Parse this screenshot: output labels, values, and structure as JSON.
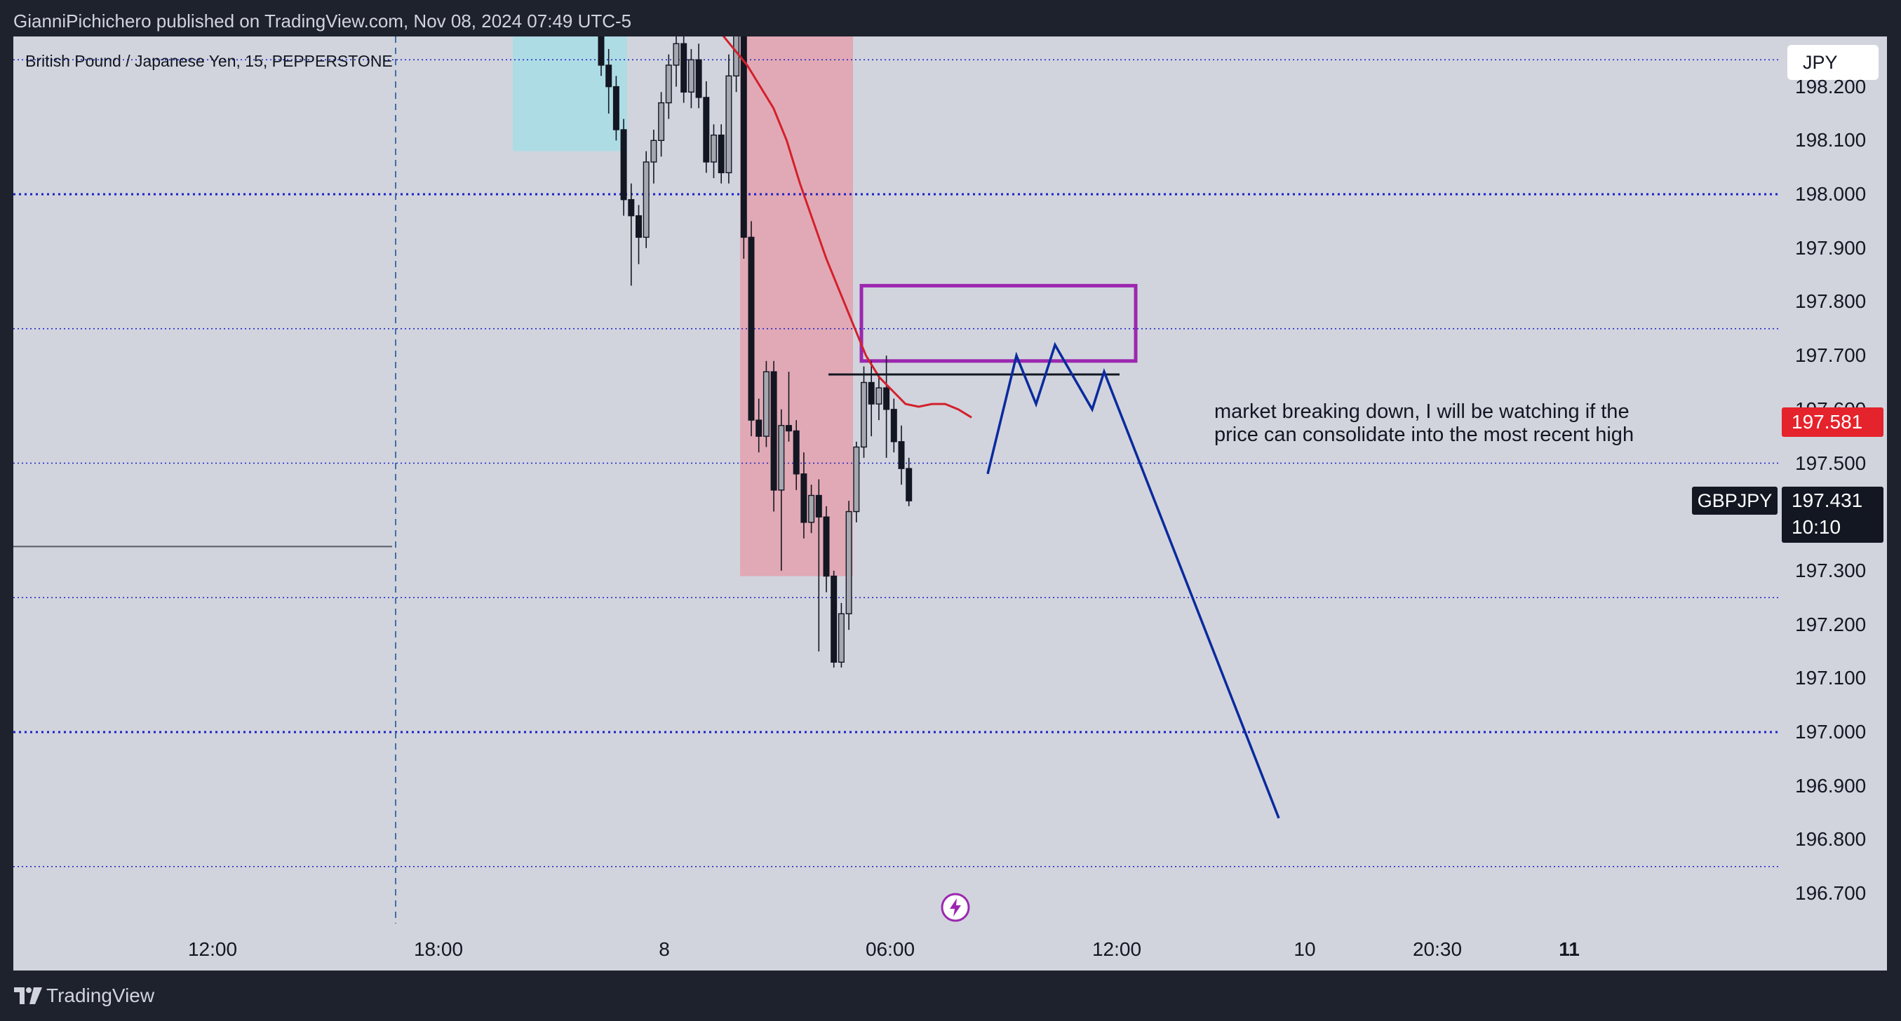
{
  "attribution": "GianniPichichero published on TradingView.com, Nov 08, 2024 07:49 UTC-5",
  "chart": {
    "symbol_title": "British Pound / Japanese Yen, 15, PEPPERSTONE",
    "currency_button": "JPY",
    "symbol": "GBPJPY",
    "price_line_red": "197.581",
    "price_last": "197.431",
    "countdown": "10:10",
    "annotation": "market breaking down, I will be watching if the price can consolidate into the most recent high",
    "colors": {
      "background": "#d1d4dc",
      "frame": "#1e222d",
      "ma_line": "#d3202c",
      "projection": "#0a2a9e",
      "supply_zone_fill": "#e4a1ae",
      "demand_zone_fill": "#a8dde6",
      "target_box": "#9c27b0",
      "horizontal_levels": "#1b1fc8",
      "price_red": "#e5232c"
    }
  },
  "footer": {
    "brand": "TradingView"
  },
  "chart_data": {
    "type": "candlestick",
    "y_axis": {
      "min": 196.65,
      "max": 198.25,
      "ticks": [
        "198.200",
        "198.100",
        "198.000",
        "197.900",
        "197.800",
        "197.700",
        "197.600",
        "197.500",
        "197.300",
        "197.200",
        "197.100",
        "197.000",
        "196.900",
        "196.800",
        "196.700"
      ]
    },
    "x_axis": {
      "ticks": [
        {
          "label": "12:00",
          "bold": false
        },
        {
          "label": "18:00",
          "bold": false
        },
        {
          "label": "8",
          "bold": false
        },
        {
          "label": "06:00",
          "bold": false
        },
        {
          "label": "12:00",
          "bold": false
        },
        {
          "label": "10",
          "bold": false
        },
        {
          "label": "20:30",
          "bold": false
        },
        {
          "label": "11",
          "bold": true
        }
      ]
    },
    "levels": [
      {
        "price": 198.25,
        "style": "dotted-thin"
      },
      {
        "price": 198.0,
        "style": "dotted-thick"
      },
      {
        "price": 197.75,
        "style": "dotted-thin"
      },
      {
        "price": 197.5,
        "style": "dotted-thin"
      },
      {
        "price": 197.25,
        "style": "dotted-thin"
      },
      {
        "price": 197.0,
        "style": "dotted-thick"
      },
      {
        "price": 196.75,
        "style": "dotted-thin"
      }
    ],
    "old_level": 197.345,
    "recent_high_line": 197.665,
    "zones": [
      {
        "name": "demand-zone",
        "from": 198.45,
        "to": 198.08
      },
      {
        "name": "supply-zone",
        "from": 198.45,
        "to": 197.29
      },
      {
        "name": "target-box",
        "from": 197.83,
        "to": 197.69
      }
    ],
    "candles": [
      {
        "o": 198.33,
        "h": 198.36,
        "l": 198.22,
        "c": 198.24
      },
      {
        "o": 198.24,
        "h": 198.27,
        "l": 198.15,
        "c": 198.2
      },
      {
        "o": 198.2,
        "h": 198.22,
        "l": 198.1,
        "c": 198.12
      },
      {
        "o": 198.12,
        "h": 198.14,
        "l": 197.96,
        "c": 197.99
      },
      {
        "o": 197.99,
        "h": 198.02,
        "l": 197.83,
        "c": 197.96
      },
      {
        "o": 197.96,
        "h": 197.98,
        "l": 197.87,
        "c": 197.92
      },
      {
        "o": 197.92,
        "h": 198.08,
        "l": 197.9,
        "c": 198.06
      },
      {
        "o": 198.06,
        "h": 198.12,
        "l": 198.02,
        "c": 198.1
      },
      {
        "o": 198.1,
        "h": 198.19,
        "l": 198.07,
        "c": 198.17
      },
      {
        "o": 198.17,
        "h": 198.26,
        "l": 198.14,
        "c": 198.24
      },
      {
        "o": 198.24,
        "h": 198.32,
        "l": 198.2,
        "c": 198.28
      },
      {
        "o": 198.28,
        "h": 198.3,
        "l": 198.17,
        "c": 198.19
      },
      {
        "o": 198.19,
        "h": 198.27,
        "l": 198.16,
        "c": 198.25
      },
      {
        "o": 198.25,
        "h": 198.28,
        "l": 198.16,
        "c": 198.18
      },
      {
        "o": 198.18,
        "h": 198.21,
        "l": 198.04,
        "c": 198.06
      },
      {
        "o": 198.06,
        "h": 198.13,
        "l": 198.03,
        "c": 198.11
      },
      {
        "o": 198.11,
        "h": 198.13,
        "l": 198.02,
        "c": 198.04
      },
      {
        "o": 198.04,
        "h": 198.26,
        "l": 198.02,
        "c": 198.22
      },
      {
        "o": 198.22,
        "h": 198.32,
        "l": 198.19,
        "c": 198.3
      },
      {
        "o": 198.3,
        "h": 198.32,
        "l": 197.88,
        "c": 197.92
      },
      {
        "o": 197.92,
        "h": 197.95,
        "l": 197.55,
        "c": 197.58
      },
      {
        "o": 197.58,
        "h": 197.62,
        "l": 197.52,
        "c": 197.55
      },
      {
        "o": 197.55,
        "h": 197.69,
        "l": 197.53,
        "c": 197.67
      },
      {
        "o": 197.67,
        "h": 197.69,
        "l": 197.41,
        "c": 197.45
      },
      {
        "o": 197.45,
        "h": 197.6,
        "l": 197.3,
        "c": 197.57
      },
      {
        "o": 197.57,
        "h": 197.67,
        "l": 197.54,
        "c": 197.56
      },
      {
        "o": 197.56,
        "h": 197.58,
        "l": 197.45,
        "c": 197.48
      },
      {
        "o": 197.48,
        "h": 197.52,
        "l": 197.36,
        "c": 197.39
      },
      {
        "o": 197.39,
        "h": 197.46,
        "l": 197.37,
        "c": 197.44
      },
      {
        "o": 197.44,
        "h": 197.47,
        "l": 197.15,
        "c": 197.4
      },
      {
        "o": 197.4,
        "h": 197.42,
        "l": 197.26,
        "c": 197.29
      },
      {
        "o": 197.29,
        "h": 197.3,
        "l": 197.12,
        "c": 197.13
      },
      {
        "o": 197.13,
        "h": 197.24,
        "l": 197.12,
        "c": 197.22
      },
      {
        "o": 197.22,
        "h": 197.43,
        "l": 197.19,
        "c": 197.41
      },
      {
        "o": 197.41,
        "h": 197.54,
        "l": 197.39,
        "c": 197.53
      },
      {
        "o": 197.53,
        "h": 197.68,
        "l": 197.51,
        "c": 197.65
      },
      {
        "o": 197.65,
        "h": 197.69,
        "l": 197.55,
        "c": 197.61
      },
      {
        "o": 197.61,
        "h": 197.66,
        "l": 197.58,
        "c": 197.64
      },
      {
        "o": 197.64,
        "h": 197.7,
        "l": 197.51,
        "c": 197.6
      },
      {
        "o": 197.6,
        "h": 197.62,
        "l": 197.52,
        "c": 197.54
      },
      {
        "o": 197.54,
        "h": 197.57,
        "l": 197.46,
        "c": 197.49
      },
      {
        "o": 197.49,
        "h": 197.51,
        "l": 197.42,
        "c": 197.43
      }
    ],
    "moving_average": [
      198.42,
      198.38,
      198.34,
      198.3,
      198.27,
      198.24,
      198.2,
      198.16,
      198.1,
      198.02,
      197.95,
      197.88,
      197.82,
      197.76,
      197.7,
      197.66,
      197.635,
      197.61,
      197.605,
      197.61,
      197.61,
      197.6,
      197.585
    ],
    "projection": [
      197.48,
      197.7,
      197.61,
      197.72,
      197.6,
      197.67,
      196.84
    ]
  }
}
